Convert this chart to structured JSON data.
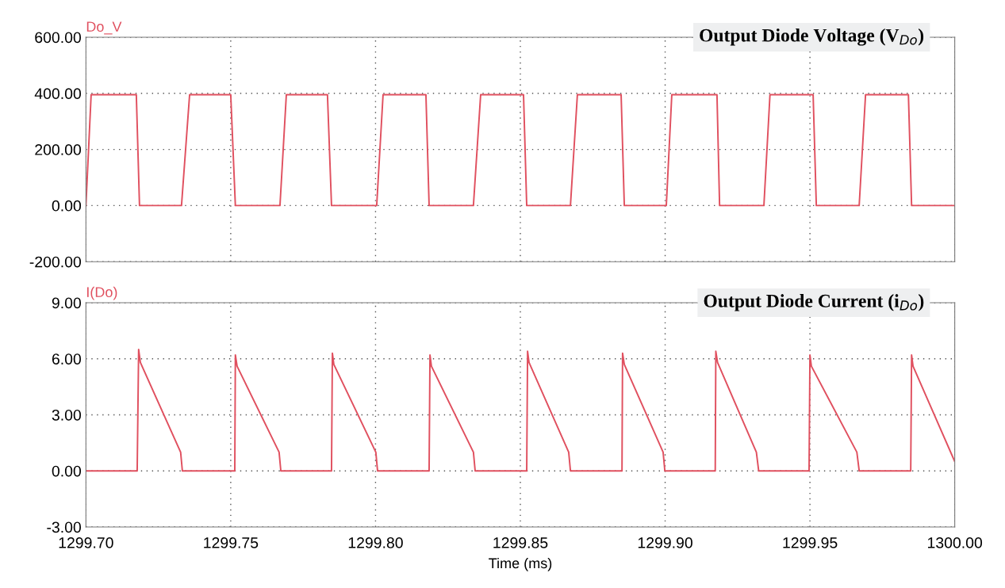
{
  "chart_data": [
    {
      "type": "line",
      "title": "Output Diode Voltage (V$_{Do}$)",
      "tick_labels": "y",
      "grid": true,
      "line_style": "solid",
      "marker": "none",
      "xlim": [
        1299.7,
        1300.0
      ],
      "xticks": [
        1299.7,
        1299.75,
        1299.8,
        1299.85,
        1299.9,
        1299.95,
        1300.0
      ],
      "ylim": [
        -200,
        600
      ],
      "yticks": [
        {
          "value": -200,
          "label": "-200.00"
        },
        {
          "value": 0,
          "label": "0.00"
        },
        {
          "value": 200,
          "label": "200.00"
        },
        {
          "value": 400,
          "label": "400.00"
        },
        {
          "value": 600,
          "label": "600.00"
        }
      ],
      "series": [
        {
          "name": "Do_V",
          "color": "#e0505f",
          "x": [
            1299.7,
            1299.7018,
            1299.7174,
            1299.7185,
            1299.733,
            1299.7358,
            1299.75,
            1299.7516,
            1299.767,
            1299.7692,
            1299.7834,
            1299.7848,
            1299.8004,
            1299.8026,
            1299.8174,
            1299.8185,
            1299.8338,
            1299.8363,
            1299.8511,
            1299.8522,
            1299.8673,
            1299.8697,
            1299.8848,
            1299.8859,
            1299.9004,
            1299.9023,
            1299.9179,
            1299.9188,
            1299.9341,
            1299.9362,
            1299.9511,
            1299.9522,
            1299.967,
            1299.9692,
            1299.984,
            1299.9851,
            1300.0
          ],
          "values": [
            0,
            395,
            395,
            0,
            0,
            395,
            395,
            0,
            0,
            395,
            395,
            0,
            0,
            395,
            395,
            0,
            0,
            395,
            395,
            0,
            0,
            395,
            395,
            0,
            0,
            395,
            395,
            0,
            0,
            395,
            395,
            0,
            0,
            395,
            395,
            0,
            0
          ]
        }
      ]
    },
    {
      "type": "line",
      "title": "Output Diode Current (i$_{Do}$)",
      "xlabel": "Time (ms)",
      "grid": true,
      "line_style": "solid",
      "marker": "none",
      "xlim": [
        1299.7,
        1300.0
      ],
      "xticks": [
        {
          "value": 1299.7,
          "label": "1299.70"
        },
        {
          "value": 1299.75,
          "label": "1299.75"
        },
        {
          "value": 1299.8,
          "label": "1299.80"
        },
        {
          "value": 1299.85,
          "label": "1299.85"
        },
        {
          "value": 1299.9,
          "label": "1299.90"
        },
        {
          "value": 1299.95,
          "label": "1299.95"
        },
        {
          "value": 1300.0,
          "label": "1300.00"
        }
      ],
      "ylim": [
        -3,
        9
      ],
      "yticks": [
        {
          "value": -3,
          "label": "-3.00"
        },
        {
          "value": 0,
          "label": "0.00"
        },
        {
          "value": 3,
          "label": "3.00"
        },
        {
          "value": 6,
          "label": "6.00"
        },
        {
          "value": 9,
          "label": "9.00"
        }
      ],
      "series": [
        {
          "name": "I(Do)",
          "color": "#e0505f",
          "x": [
            1299.7,
            1299.7177,
            1299.7182,
            1299.7188,
            1299.7327,
            1299.7333,
            1299.7514,
            1299.7516,
            1299.7522,
            1299.7667,
            1299.7673,
            1299.7848,
            1299.7851,
            1299.7856,
            1299.8001,
            1299.8007,
            1299.8185,
            1299.8188,
            1299.8193,
            1299.8338,
            1299.8344,
            1299.8522,
            1299.8525,
            1299.853,
            1299.8667,
            1299.8673,
            1299.8851,
            1299.8853,
            1299.8859,
            1299.8993,
            1299.8999,
            1299.9173,
            1299.9175,
            1299.9181,
            1299.9315,
            1299.9323,
            1299.9497,
            1299.95,
            1299.9505,
            1299.9662,
            1299.967,
            1299.9848,
            1299.9851,
            1299.9856,
            1300.0
          ],
          "values": [
            0,
            0,
            6.5,
            5.8,
            1.0,
            0,
            0,
            6.2,
            5.6,
            1.0,
            0,
            0,
            6.3,
            5.7,
            1.0,
            0,
            0,
            6.2,
            5.6,
            1.0,
            0,
            0,
            6.4,
            5.8,
            1.0,
            0,
            0,
            6.3,
            5.7,
            1.0,
            0,
            0,
            6.4,
            5.8,
            1.0,
            0,
            0,
            6.2,
            5.6,
            1.0,
            0,
            0,
            6.2,
            5.6,
            0.5
          ]
        }
      ]
    }
  ]
}
